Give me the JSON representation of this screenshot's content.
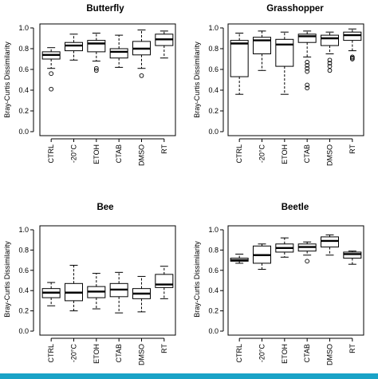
{
  "figure": {
    "ylabel": "Bray-Curtis Dissimilarity",
    "categories": [
      "CTRL",
      "-20°C",
      "ETOH",
      "CTAB",
      "DMSO",
      "RT"
    ],
    "yticks": [
      "0.0",
      "0.2",
      "0.4",
      "0.6",
      "0.8",
      "1.0"
    ],
    "accent_color": "#1aa3c7"
  },
  "chart_data": [
    {
      "type": "boxplot",
      "title": "Butterfly",
      "ylabel": "Bray-Curtis Dissimilarity",
      "ylim": [
        0,
        1
      ],
      "categories": [
        "CTRL",
        "-20°C",
        "ETOH",
        "CTAB",
        "DMSO",
        "RT"
      ],
      "boxes": [
        {
          "min": 0.61,
          "q1": 0.7,
          "median": 0.74,
          "q3": 0.77,
          "max": 0.81,
          "outliers": [
            0.56,
            0.41
          ]
        },
        {
          "min": 0.69,
          "q1": 0.78,
          "median": 0.83,
          "q3": 0.86,
          "max": 0.94,
          "outliers": []
        },
        {
          "min": 0.68,
          "q1": 0.77,
          "median": 0.85,
          "q3": 0.88,
          "max": 0.95,
          "outliers": [
            0.61,
            0.59
          ]
        },
        {
          "min": 0.62,
          "q1": 0.71,
          "median": 0.77,
          "q3": 0.8,
          "max": 0.93,
          "outliers": []
        },
        {
          "min": 0.61,
          "q1": 0.74,
          "median": 0.8,
          "q3": 0.87,
          "max": 0.98,
          "outliers": [
            0.54
          ]
        },
        {
          "min": 0.71,
          "q1": 0.83,
          "median": 0.89,
          "q3": 0.94,
          "max": 0.97,
          "outliers": []
        }
      ]
    },
    {
      "type": "boxplot",
      "title": "Grasshopper",
      "ylabel": "Bray-Curtis Dissimilarity",
      "ylim": [
        0,
        1
      ],
      "categories": [
        "CTRL",
        "-20°C",
        "ETOH",
        "CTAB",
        "DMSO",
        "RT"
      ],
      "boxes": [
        {
          "min": 0.36,
          "q1": 0.53,
          "median": 0.85,
          "q3": 0.88,
          "max": 0.95,
          "outliers": []
        },
        {
          "min": 0.59,
          "q1": 0.75,
          "median": 0.88,
          "q3": 0.91,
          "max": 0.97,
          "outliers": []
        },
        {
          "min": 0.36,
          "q1": 0.63,
          "median": 0.84,
          "q3": 0.89,
          "max": 0.96,
          "outliers": []
        },
        {
          "min": 0.72,
          "q1": 0.86,
          "median": 0.92,
          "q3": 0.94,
          "max": 0.97,
          "outliers": [
            0.67,
            0.64,
            0.61,
            0.58,
            0.45,
            0.42
          ]
        },
        {
          "min": 0.75,
          "q1": 0.83,
          "median": 0.9,
          "q3": 0.93,
          "max": 0.96,
          "outliers": [
            0.69,
            0.66,
            0.63,
            0.59
          ]
        },
        {
          "min": 0.78,
          "q1": 0.88,
          "median": 0.93,
          "q3": 0.96,
          "max": 0.99,
          "outliers": [
            0.7,
            0.71,
            0.72
          ]
        }
      ]
    },
    {
      "type": "boxplot",
      "title": "Bee",
      "ylabel": "Bray-Curtis Dissimilarity",
      "ylim": [
        0,
        1
      ],
      "categories": [
        "CTRL",
        "-20°C",
        "ETOH",
        "CTAB",
        "DMSO",
        "RT"
      ],
      "boxes": [
        {
          "min": 0.25,
          "q1": 0.33,
          "median": 0.38,
          "q3": 0.42,
          "max": 0.48,
          "outliers": []
        },
        {
          "min": 0.2,
          "q1": 0.3,
          "median": 0.38,
          "q3": 0.47,
          "max": 0.65,
          "outliers": []
        },
        {
          "min": 0.22,
          "q1": 0.33,
          "median": 0.39,
          "q3": 0.44,
          "max": 0.57,
          "outliers": []
        },
        {
          "min": 0.18,
          "q1": 0.34,
          "median": 0.41,
          "q3": 0.47,
          "max": 0.58,
          "outliers": []
        },
        {
          "min": 0.19,
          "q1": 0.32,
          "median": 0.37,
          "q3": 0.42,
          "max": 0.54,
          "outliers": []
        },
        {
          "min": 0.32,
          "q1": 0.43,
          "median": 0.46,
          "q3": 0.56,
          "max": 0.64,
          "outliers": []
        }
      ]
    },
    {
      "type": "boxplot",
      "title": "Beetle",
      "ylabel": "Bray-Curtis Dissimilarity",
      "ylim": [
        0,
        1
      ],
      "categories": [
        "CTRL",
        "-20°C",
        "ETOH",
        "CTAB",
        "DMSO",
        "RT"
      ],
      "boxes": [
        {
          "min": 0.67,
          "q1": 0.69,
          "median": 0.7,
          "q3": 0.72,
          "max": 0.76,
          "outliers": []
        },
        {
          "min": 0.61,
          "q1": 0.67,
          "median": 0.75,
          "q3": 0.84,
          "max": 0.86,
          "outliers": []
        },
        {
          "min": 0.73,
          "q1": 0.78,
          "median": 0.82,
          "q3": 0.86,
          "max": 0.92,
          "outliers": []
        },
        {
          "min": 0.75,
          "q1": 0.79,
          "median": 0.83,
          "q3": 0.86,
          "max": 0.88,
          "outliers": [
            0.69
          ]
        },
        {
          "min": 0.75,
          "q1": 0.83,
          "median": 0.89,
          "q3": 0.93,
          "max": 0.95,
          "outliers": []
        },
        {
          "min": 0.66,
          "q1": 0.72,
          "median": 0.76,
          "q3": 0.78,
          "max": 0.79,
          "outliers": []
        }
      ]
    }
  ]
}
